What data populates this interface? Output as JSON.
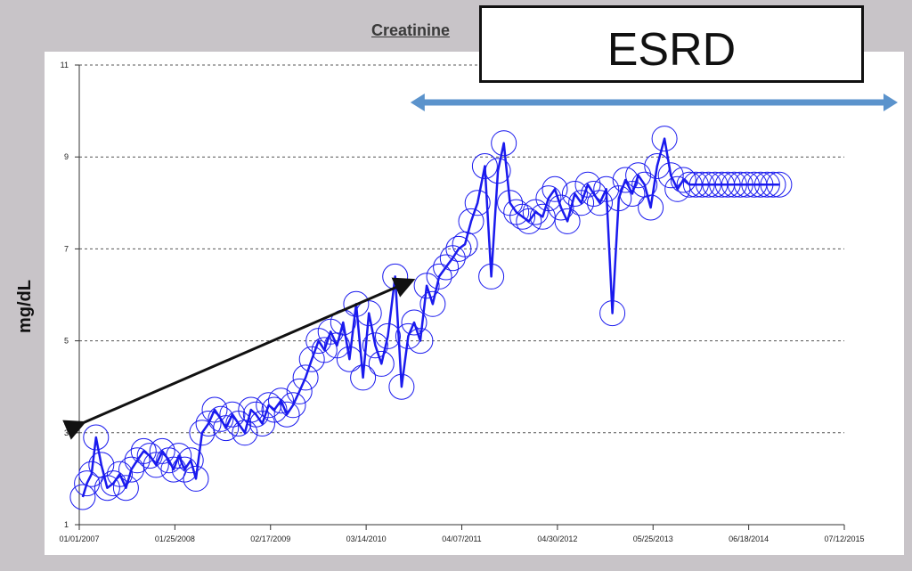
{
  "chart_data": {
    "type": "scatter",
    "title": "Creatinine",
    "ylabel": "mg/dL",
    "xlabel": "",
    "ylim": [
      1,
      11
    ],
    "yticks": [
      "1",
      "3",
      "5",
      "7",
      "9",
      "11"
    ],
    "xlim": [
      "2007-01-01",
      "2015-07-12"
    ],
    "xticks": [
      "01/01/2007",
      "01/25/2008",
      "02/17/2009",
      "03/14/2010",
      "04/07/2011",
      "04/30/2012",
      "05/25/2013",
      "06/18/2014",
      "07/12/2015"
    ],
    "grid": "horizontal dashed",
    "annotations": {
      "stage_label": "ESRD",
      "stage_arrow_range": [
        "2010-09-10",
        "2015-07-12"
      ],
      "trend_arrow": {
        "from": [
          "2007-01-10",
          3.2
        ],
        "to": [
          "2010-09-10",
          6.3
        ]
      }
    },
    "series": [
      {
        "color": "#1a1aee",
        "marker": "open-circle",
        "x": [
          "2007-01-15",
          "2007-02-01",
          "2007-02-20",
          "2007-03-10",
          "2007-04-01",
          "2007-04-25",
          "2007-05-20",
          "2007-06-15",
          "2007-07-10",
          "2007-08-01",
          "2007-08-25",
          "2007-09-20",
          "2007-10-15",
          "2007-11-10",
          "2007-12-05",
          "2008-01-01",
          "2008-01-20",
          "2008-02-10",
          "2008-03-05",
          "2008-03-30",
          "2008-04-20",
          "2008-05-15",
          "2008-06-10",
          "2008-07-05",
          "2008-07-30",
          "2008-08-20",
          "2008-09-15",
          "2008-10-10",
          "2008-11-05",
          "2008-11-30",
          "2008-12-20",
          "2009-01-15",
          "2009-02-10",
          "2009-03-05",
          "2009-04-01",
          "2009-04-25",
          "2009-05-20",
          "2009-06-15",
          "2009-07-10",
          "2009-08-05",
          "2009-09-01",
          "2009-09-25",
          "2009-10-20",
          "2009-11-15",
          "2009-12-10",
          "2010-01-05",
          "2010-02-01",
          "2010-03-01",
          "2010-03-25",
          "2010-04-20",
          "2010-05-15",
          "2010-06-10",
          "2010-07-10",
          "2010-08-05",
          "2010-09-01",
          "2010-09-25",
          "2010-10-20",
          "2010-11-15",
          "2010-12-10",
          "2011-01-05",
          "2011-02-01",
          "2011-03-01",
          "2011-03-25",
          "2011-04-20",
          "2011-05-15",
          "2011-06-10",
          "2011-07-10",
          "2011-08-05",
          "2011-09-01",
          "2011-09-25",
          "2011-10-20",
          "2011-11-15",
          "2011-12-10",
          "2012-01-05",
          "2012-02-01",
          "2012-03-01",
          "2012-03-25",
          "2012-04-20",
          "2012-05-15",
          "2012-06-10",
          "2012-07-10",
          "2012-08-05",
          "2012-09-01",
          "2012-09-25",
          "2012-10-20",
          "2012-11-15",
          "2012-12-10",
          "2013-01-05",
          "2013-02-01",
          "2013-03-01",
          "2013-03-25",
          "2013-04-20",
          "2013-05-15",
          "2013-06-10",
          "2013-07-10",
          "2013-08-05",
          "2013-09-01",
          "2013-09-25",
          "2013-10-20",
          "2013-11-15",
          "2013-12-10",
          "2014-01-05",
          "2014-02-01",
          "2014-03-01",
          "2014-03-25",
          "2014-04-20",
          "2014-05-15",
          "2014-06-10",
          "2014-07-10",
          "2014-08-05",
          "2014-09-01",
          "2014-09-25",
          "2014-10-20"
        ],
        "y": [
          1.6,
          1.9,
          2.1,
          2.9,
          2.3,
          1.8,
          1.9,
          2.1,
          1.8,
          2.2,
          2.4,
          2.6,
          2.5,
          2.3,
          2.6,
          2.4,
          2.2,
          2.5,
          2.2,
          2.4,
          2.0,
          3.0,
          3.2,
          3.5,
          3.3,
          3.1,
          3.4,
          3.2,
          3.0,
          3.5,
          3.4,
          3.2,
          3.6,
          3.5,
          3.7,
          3.4,
          3.6,
          3.9,
          4.2,
          4.6,
          5.0,
          4.8,
          5.2,
          4.9,
          5.4,
          4.6,
          5.8,
          4.2,
          5.6,
          4.9,
          4.5,
          5.1,
          6.4,
          4.0,
          5.1,
          5.4,
          5.0,
          6.2,
          5.8,
          6.4,
          6.6,
          6.8,
          7.0,
          7.1,
          7.6,
          8.0,
          8.8,
          6.4,
          8.7,
          9.3,
          8.0,
          7.8,
          7.7,
          7.6,
          7.8,
          7.7,
          8.1,
          8.3,
          7.9,
          7.6,
          8.2,
          8.0,
          8.4,
          8.2,
          8.0,
          8.3,
          5.6,
          8.1,
          8.5,
          8.2,
          8.6,
          8.4,
          7.9,
          8.8,
          9.4,
          8.6,
          8.3,
          8.5,
          8.4,
          8.4,
          8.4,
          8.4,
          8.4,
          8.4,
          8.4,
          8.4,
          8.4,
          8.4,
          8.4,
          8.4,
          8.4,
          8.4,
          8.4
        ]
      }
    ]
  }
}
